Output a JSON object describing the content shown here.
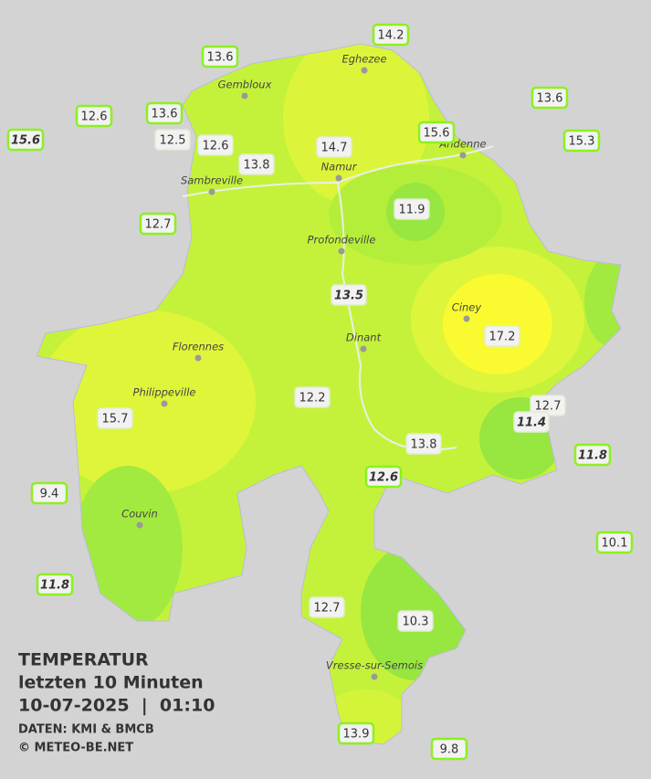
{
  "title": {
    "lines": [
      "TEMPERATUR",
      "letzten 10 Minuten",
      "10-07-2025  |  01:10"
    ],
    "credits": [
      "DATEN: KMI & BMCB",
      "© METEO-BE.NET"
    ]
  },
  "cities": [
    "Eghezee",
    "Gembloux",
    "Andenne",
    "Namur",
    "Sambreville",
    "Profondeville",
    "Ciney",
    "Dinant",
    "Florennes",
    "Philippeville",
    "Couvin",
    "Vresse-sur-Semois"
  ],
  "stations": [
    {
      "value": 14.2
    },
    {
      "value": 13.6
    },
    {
      "value": 13.6
    },
    {
      "value": 12.6
    },
    {
      "value": 13.6
    },
    {
      "value": 15.6,
      "italic": true
    },
    {
      "value": 12.5
    },
    {
      "value": 12.6
    },
    {
      "value": 14.7
    },
    {
      "value": 15.6
    },
    {
      "value": 15.3
    },
    {
      "value": 13.8
    },
    {
      "value": 11.9
    },
    {
      "value": 12.7
    },
    {
      "value": 13.5,
      "italic": true
    },
    {
      "value": 17.2
    },
    {
      "value": 12.2
    },
    {
      "value": 12.7
    },
    {
      "value": 11.4,
      "italic": true
    },
    {
      "value": 15.7
    },
    {
      "value": 13.8
    },
    {
      "value": 11.8,
      "italic": true
    },
    {
      "value": 12.6,
      "italic": true
    },
    {
      "value": 9.4
    },
    {
      "value": 10.1
    },
    {
      "value": 11.8,
      "italic": true
    },
    {
      "value": 12.7
    },
    {
      "value": 10.3
    },
    {
      "value": 13.9
    },
    {
      "value": 9.8
    }
  ]
}
